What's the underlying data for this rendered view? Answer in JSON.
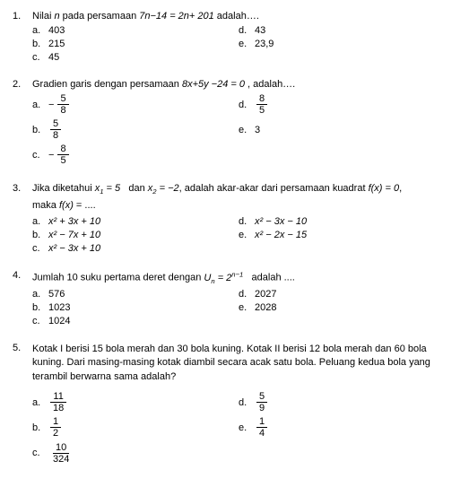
{
  "questions": [
    {
      "num": "1.",
      "text_parts": [
        "Nilai ",
        " pada persamaan ",
        " adalah…."
      ],
      "math_inline": "n",
      "equation": "7n−14 = 2n+ 201",
      "opts": {
        "a": {
          "label": "a.",
          "val": "403"
        },
        "b": {
          "label": "b.",
          "val": "215"
        },
        "c": {
          "label": "c.",
          "val": "45"
        },
        "d": {
          "label": "d.",
          "val": "43"
        },
        "e": {
          "label": "e.",
          "val": "23,9"
        }
      }
    },
    {
      "num": "2.",
      "text_parts": [
        "Gradien garis dengan persamaan ",
        " , adalah…."
      ],
      "equation": "8x+5y −24 = 0",
      "opts": {
        "a": {
          "label": "a.",
          "frac_num": "5",
          "frac_den": "8",
          "neg": true
        },
        "b": {
          "label": "b.",
          "frac_num": "5",
          "frac_den": "8",
          "neg": false
        },
        "c": {
          "label": "c.",
          "frac_num": "8",
          "frac_den": "5",
          "neg": true
        },
        "d": {
          "label": "d.",
          "frac_num": "8",
          "frac_den": "5",
          "neg": false
        },
        "e": {
          "label": "e.",
          "val": "3"
        }
      }
    },
    {
      "num": "3.",
      "text_parts": [
        "Jika diketahui ",
        " dan ",
        ", adalah akar-akar dari persamaan kuadrat ",
        ","
      ],
      "x1": "x₁ = 5",
      "x2": "x₂ = −2",
      "fx": "f(x) = 0",
      "cont": "maka f(x) = ....",
      "opts": {
        "a": {
          "label": "a.",
          "val": "x² + 3x + 10"
        },
        "b": {
          "label": "b.",
          "val": "x² − 7x + 10"
        },
        "c": {
          "label": "c.",
          "val": "x² − 3x + 10"
        },
        "d": {
          "label": "d.",
          "val": "x² − 3x − 10"
        },
        "e": {
          "label": "e.",
          "val": "x² − 2x − 15"
        }
      }
    },
    {
      "num": "4.",
      "text_parts": [
        "Jumlah 10 suku pertama deret dengan ",
        " adalah ...."
      ],
      "un": "Uₙ = 2",
      "exp": "n−1",
      "opts": {
        "a": {
          "label": "a.",
          "val": "576"
        },
        "b": {
          "label": "b.",
          "val": "1023"
        },
        "c": {
          "label": "c.",
          "val": "1024"
        },
        "d": {
          "label": "d.",
          "val": "2027"
        },
        "e": {
          "label": "e.",
          "val": "2028"
        }
      }
    },
    {
      "num": "5.",
      "text": "Kotak I berisi 15 bola merah dan 30 bola kuning. Kotak II berisi 12 bola merah dan 60 bola kuning. Dari masing-masing kotak diambil secara acak satu bola. Peluang kedua bola yang terambil berwarna sama adalah?",
      "opts": {
        "a": {
          "label": "a.",
          "frac_num": "11",
          "frac_den": "18"
        },
        "b": {
          "label": "b.",
          "frac_num": "1",
          "frac_den": "2"
        },
        "c": {
          "label": "c.",
          "frac_num": "10",
          "frac_den": "324"
        },
        "d": {
          "label": "d.",
          "frac_num": "5",
          "frac_den": "9"
        },
        "e": {
          "label": "e.",
          "frac_num": "1",
          "frac_den": "4"
        }
      }
    }
  ]
}
